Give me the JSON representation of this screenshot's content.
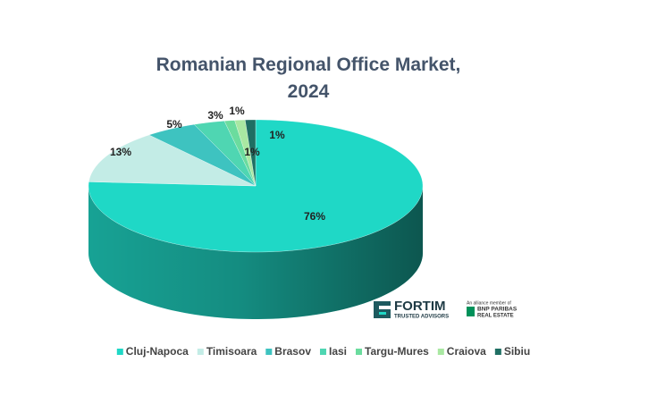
{
  "chart_data": {
    "type": "pie3d",
    "title": "Romanian Regional Office Market, 2024",
    "categories": [
      "Cluj-Napoca",
      "Timisoara",
      "Brasov",
      "Iasi",
      "Targu-Mures",
      "Craiova",
      "Sibiu"
    ],
    "values": [
      76,
      13,
      5,
      3,
      1,
      1,
      1
    ],
    "value_labels": [
      "76%",
      "13%",
      "5%",
      "3%",
      "1%",
      "1%",
      "1%"
    ],
    "colors": [
      "#1fd8c6",
      "#c3ece6",
      "#3ec3c0",
      "#4fd6b2",
      "#6bdc9e",
      "#a9e8a2",
      "#1f6f63"
    ],
    "legend": "bottom"
  },
  "branding": {
    "name": "FORTIM",
    "tagline": "TRUSTED ADVISORS",
    "alliance": "An alliance member of",
    "partner": "BNP PARIBAS",
    "partner_sub": "REAL ESTATE"
  }
}
